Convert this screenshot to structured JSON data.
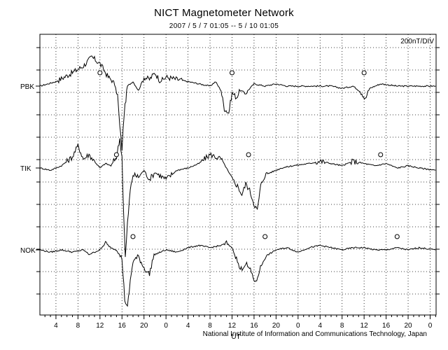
{
  "chart_data": {
    "type": "line",
    "title": "NICT Magnetometer Network",
    "subtitle": "2007 / 5 / 7   01:05 --  5 / 10   01:05",
    "scale_label": "200nT/DIV",
    "credit": "National Institute of Information and Communications Technology, Japan",
    "xlabel": "UT",
    "x_ticks": [
      "4",
      "8",
      "12",
      "16",
      "20",
      "0",
      "4",
      "8",
      "12",
      "16",
      "20",
      "0",
      "4",
      "8",
      "12",
      "16",
      "20",
      "0"
    ],
    "x_range_hours": [
      1.083,
      73.083
    ],
    "grid": true,
    "series": [
      {
        "name": "PBK",
        "marker_hours": [
          12,
          36,
          60
        ],
        "points": [
          [
            1.1,
            0
          ],
          [
            4,
            0.2
          ],
          [
            7,
            0.6
          ],
          [
            9,
            0.9
          ],
          [
            10.5,
            1.3
          ],
          [
            12,
            1.0
          ],
          [
            13.5,
            0.4
          ],
          [
            14.5,
            0.2
          ],
          [
            15.2,
            -0.4
          ],
          [
            15.6,
            -1.8
          ],
          [
            16,
            -2.8
          ],
          [
            16.4,
            -1.2
          ],
          [
            17,
            0.0
          ],
          [
            18,
            0.2
          ],
          [
            19,
            -0.2
          ],
          [
            20,
            0.4
          ],
          [
            21,
            0.3
          ],
          [
            22,
            0.6
          ],
          [
            23,
            0.2
          ],
          [
            24,
            0.4
          ],
          [
            26,
            0.3
          ],
          [
            28,
            0.2
          ],
          [
            30,
            0.1
          ],
          [
            32,
            0.0
          ],
          [
            33,
            0.2
          ],
          [
            34,
            -0.2
          ],
          [
            34.6,
            -1.0
          ],
          [
            35.4,
            -1.2
          ],
          [
            36,
            -0.3
          ],
          [
            36.8,
            -0.5
          ],
          [
            37.5,
            -0.2
          ],
          [
            38.5,
            -0.3
          ],
          [
            40,
            0.1
          ],
          [
            42,
            0.0
          ],
          [
            44,
            0.1
          ],
          [
            46,
            0.0
          ],
          [
            50,
            0.0
          ],
          [
            54,
            0.0
          ],
          [
            56,
            -0.1
          ],
          [
            58,
            0.0
          ],
          [
            59.6,
            -0.3
          ],
          [
            60.2,
            -0.6
          ],
          [
            61,
            -0.1
          ],
          [
            63,
            0.1
          ],
          [
            66,
            0.0
          ],
          [
            70,
            0.0
          ],
          [
            73,
            0.0
          ]
        ]
      },
      {
        "name": "TIK",
        "marker_hours": [
          15,
          39,
          63
        ],
        "points": [
          [
            1.1,
            0
          ],
          [
            3,
            -0.1
          ],
          [
            5,
            0.1
          ],
          [
            7,
            0.5
          ],
          [
            8,
            1.0
          ],
          [
            9,
            0.4
          ],
          [
            10,
            0.6
          ],
          [
            11,
            0.3
          ],
          [
            12,
            0.0
          ],
          [
            13,
            0.2
          ],
          [
            14,
            0.1
          ],
          [
            15,
            0.5
          ],
          [
            15.6,
            1.3
          ],
          [
            16,
            0.5
          ],
          [
            16.3,
            -2.0
          ],
          [
            16.6,
            -4.0
          ],
          [
            17,
            -2.5
          ],
          [
            17.5,
            -1.0
          ],
          [
            18,
            -0.3
          ],
          [
            19,
            -0.4
          ],
          [
            20,
            -0.1
          ],
          [
            21,
            -0.5
          ],
          [
            22,
            -0.2
          ],
          [
            24,
            -0.5
          ],
          [
            26,
            -0.1
          ],
          [
            28,
            0.0
          ],
          [
            30,
            0.2
          ],
          [
            32,
            0.6
          ],
          [
            34,
            0.4
          ],
          [
            35,
            0.0
          ],
          [
            36,
            -0.5
          ],
          [
            37,
            -0.8
          ],
          [
            37.8,
            -1.2
          ],
          [
            38.5,
            -0.7
          ],
          [
            39.2,
            -1.0
          ],
          [
            40,
            -1.6
          ],
          [
            40.6,
            -1.9
          ],
          [
            41.2,
            -0.8
          ],
          [
            42,
            -0.3
          ],
          [
            43,
            -0.2
          ],
          [
            45,
            0.0
          ],
          [
            47,
            0.1
          ],
          [
            50,
            0.2
          ],
          [
            52,
            0.3
          ],
          [
            54,
            0.2
          ],
          [
            56,
            0.1
          ],
          [
            58,
            0.3
          ],
          [
            60,
            0.2
          ],
          [
            62,
            0.1
          ],
          [
            64,
            0.2
          ],
          [
            66,
            0.0
          ],
          [
            68,
            0.1
          ],
          [
            70,
            0.0
          ],
          [
            73,
            -0.1
          ]
        ]
      },
      {
        "name": "NOK",
        "marker_hours": [
          18,
          42,
          66
        ],
        "points": [
          [
            1.1,
            0
          ],
          [
            3,
            -0.1
          ],
          [
            5,
            0.0
          ],
          [
            7,
            -0.1
          ],
          [
            9,
            0.0
          ],
          [
            10,
            -0.2
          ],
          [
            11,
            -0.1
          ],
          [
            12,
            0.0
          ],
          [
            13,
            0.3
          ],
          [
            14,
            0.1
          ],
          [
            15,
            0.0
          ],
          [
            16,
            -0.4
          ],
          [
            16.5,
            -2.2
          ],
          [
            17,
            -2.6
          ],
          [
            17.5,
            -1.4
          ],
          [
            18,
            -0.5
          ],
          [
            19,
            -0.3
          ],
          [
            20,
            -0.8
          ],
          [
            21,
            -1.1
          ],
          [
            21.5,
            -0.5
          ],
          [
            22,
            -0.2
          ],
          [
            24,
            0.0
          ],
          [
            26,
            -0.1
          ],
          [
            28,
            0.1
          ],
          [
            30,
            0.2
          ],
          [
            32,
            0.1
          ],
          [
            34,
            0.2
          ],
          [
            35,
            0.3
          ],
          [
            36,
            0.1
          ],
          [
            36.8,
            -0.4
          ],
          [
            37.5,
            -0.9
          ],
          [
            38.5,
            -0.6
          ],
          [
            39.5,
            -1.0
          ],
          [
            40.3,
            -1.5
          ],
          [
            41,
            -0.9
          ],
          [
            42,
            -0.3
          ],
          [
            44,
            0.0
          ],
          [
            46,
            0.1
          ],
          [
            48,
            -0.1
          ],
          [
            50,
            0.1
          ],
          [
            52,
            0.2
          ],
          [
            54,
            0.1
          ],
          [
            56,
            0.0
          ],
          [
            58,
            0.1
          ],
          [
            60,
            0.1
          ],
          [
            62,
            0.0
          ],
          [
            64,
            0.0
          ],
          [
            66,
            0.1
          ],
          [
            68,
            0.0
          ],
          [
            70,
            0.1
          ],
          [
            73,
            0.0
          ]
        ]
      }
    ]
  }
}
